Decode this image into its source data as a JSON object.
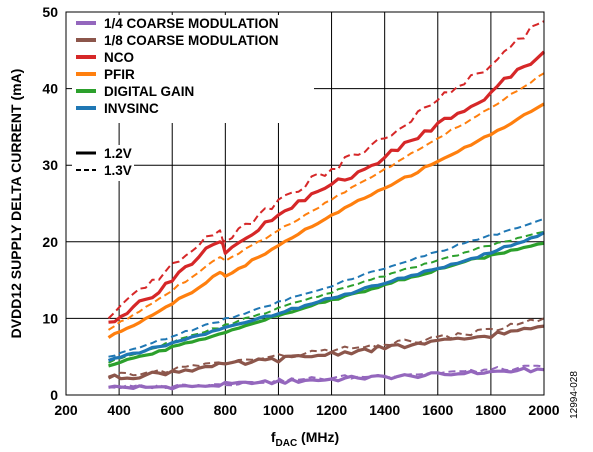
{
  "chart_data": {
    "type": "line",
    "xlabel_main": "f",
    "xlabel_sub": "DAC",
    "xlabel_unit": " (MHz)",
    "ylabel": "DVDD12 SUPPLY DELTA CURRENT (mA)",
    "xlim": [
      200,
      2000
    ],
    "ylim": [
      0,
      50
    ],
    "x_ticks": [
      "200",
      "400",
      "600",
      "800",
      "1000",
      "1200",
      "1400",
      "1600",
      "1800",
      "2000"
    ],
    "y_ticks": [
      "0",
      "10",
      "20",
      "30",
      "40",
      "50"
    ],
    "grid": true,
    "legend_position": "top-left",
    "figure_id": "12994-028",
    "voltage_styles": [
      {
        "label": "1.2V",
        "dash": "solid"
      },
      {
        "label": "1.3V",
        "dash": "dashed"
      }
    ],
    "series": [
      {
        "name": "1/4 COARSE MODULATION",
        "color": "#9467bd",
        "x": [
          360,
          500,
          700,
          900,
          1100,
          1300,
          1500,
          1700,
          1900,
          2000
        ],
        "v12": [
          1.0,
          1.0,
          1.2,
          1.5,
          1.9,
          2.2,
          2.5,
          2.8,
          3.2,
          3.3
        ],
        "v13": [
          1.0,
          1.1,
          1.3,
          1.7,
          2.1,
          2.4,
          2.7,
          3.1,
          3.5,
          3.7
        ]
      },
      {
        "name": "1/8 COARSE MODULATION",
        "color": "#8c564b",
        "x": [
          360,
          500,
          700,
          900,
          1100,
          1300,
          1500,
          1700,
          1900,
          2000
        ],
        "v12": [
          2.2,
          2.6,
          3.5,
          4.3,
          5.0,
          5.8,
          6.5,
          7.3,
          8.4,
          9.0
        ],
        "v13": [
          2.4,
          2.9,
          3.8,
          4.6,
          5.4,
          6.2,
          7.0,
          7.9,
          9.2,
          10.0
        ]
      },
      {
        "name": "NCO",
        "color": "#d62728",
        "x": [
          360,
          500,
          700,
          780,
          800,
          1000,
          1200,
          1400,
          1600,
          1800,
          1900,
          2000
        ],
        "v12": [
          9.5,
          12.5,
          18.0,
          20.0,
          18.5,
          23.5,
          27.5,
          31.0,
          35.5,
          39.5,
          42.5,
          44.8
        ],
        "v13": [
          10.0,
          14.0,
          19.5,
          21.5,
          20.0,
          25.5,
          29.5,
          33.5,
          38.5,
          43.0,
          46.5,
          48.8
        ]
      },
      {
        "name": "PFIR",
        "color": "#ff7f0e",
        "x": [
          360,
          500,
          700,
          780,
          800,
          1000,
          1200,
          1400,
          1600,
          1800,
          2000
        ],
        "v12": [
          7.5,
          10.0,
          14.0,
          16.0,
          15.5,
          19.5,
          23.5,
          27.0,
          30.5,
          34.0,
          38.0
        ],
        "v13": [
          8.5,
          11.5,
          16.0,
          18.0,
          17.5,
          21.5,
          25.5,
          29.5,
          33.5,
          37.5,
          42.0
        ]
      },
      {
        "name": "DIGITAL GAIN",
        "color": "#2ca02c",
        "x": [
          360,
          500,
          700,
          900,
          1100,
          1300,
          1500,
          1700,
          1900,
          2000
        ],
        "v12": [
          3.8,
          5.2,
          7.2,
          9.3,
          11.4,
          13.4,
          15.4,
          17.4,
          19.0,
          19.8
        ],
        "v13": [
          4.2,
          5.8,
          8.0,
          10.2,
          12.4,
          14.5,
          16.6,
          18.6,
          20.5,
          21.3
        ]
      },
      {
        "name": "INVSINC",
        "color": "#1f77b4",
        "x": [
          360,
          500,
          700,
          900,
          1100,
          1300,
          1500,
          1700,
          1900,
          2000
        ],
        "v12": [
          4.5,
          5.8,
          7.8,
          9.7,
          11.7,
          13.6,
          15.6,
          17.5,
          19.8,
          21.2
        ],
        "v13": [
          5.0,
          6.5,
          8.8,
          11.0,
          13.2,
          15.4,
          17.6,
          19.8,
          21.8,
          23.0
        ]
      }
    ]
  }
}
